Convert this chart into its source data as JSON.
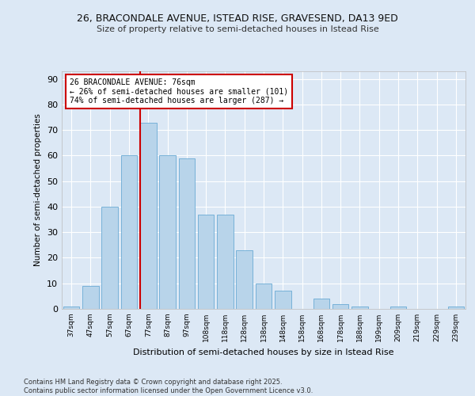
{
  "title1": "26, BRACONDALE AVENUE, ISTEAD RISE, GRAVESEND, DA13 9ED",
  "title2": "Size of property relative to semi-detached houses in Istead Rise",
  "xlabel": "Distribution of semi-detached houses by size in Istead Rise",
  "ylabel": "Number of semi-detached properties",
  "categories": [
    "37sqm",
    "47sqm",
    "57sqm",
    "67sqm",
    "77sqm",
    "87sqm",
    "97sqm",
    "108sqm",
    "118sqm",
    "128sqm",
    "138sqm",
    "148sqm",
    "158sqm",
    "168sqm",
    "178sqm",
    "188sqm",
    "199sqm",
    "209sqm",
    "219sqm",
    "229sqm",
    "239sqm"
  ],
  "values": [
    1,
    9,
    40,
    60,
    73,
    60,
    59,
    37,
    37,
    23,
    10,
    7,
    0,
    4,
    2,
    1,
    0,
    1,
    0,
    0,
    1
  ],
  "bar_color": "#b8d4ea",
  "bar_edge_color": "#6aaad4",
  "vline_color": "#cc0000",
  "annotation_box_color": "#cc0000",
  "annotation_title": "26 BRACONDALE AVENUE: 76sqm",
  "annotation_line1": "← 26% of semi-detached houses are smaller (101)",
  "annotation_line2": "74% of semi-detached houses are larger (287) →",
  "ylim": [
    0,
    93
  ],
  "yticks": [
    0,
    10,
    20,
    30,
    40,
    50,
    60,
    70,
    80,
    90
  ],
  "background_color": "#dce8f5",
  "grid_color": "#ffffff",
  "footer": "Contains HM Land Registry data © Crown copyright and database right 2025.\nContains public sector information licensed under the Open Government Licence v3.0."
}
